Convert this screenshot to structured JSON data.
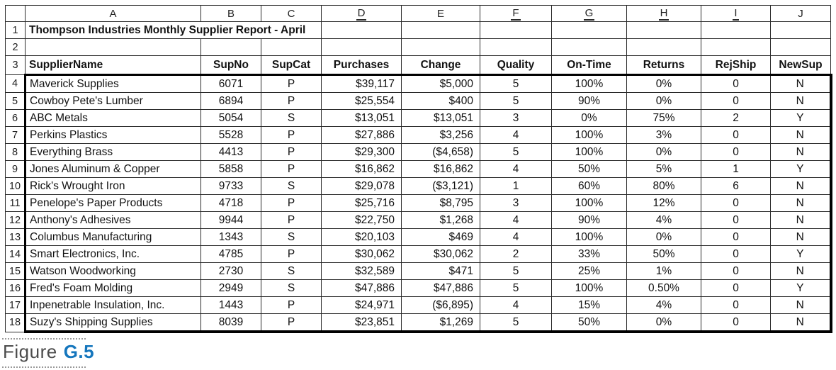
{
  "spreadsheet": {
    "columns": [
      {
        "letter": "A",
        "underline": false
      },
      {
        "letter": "B",
        "underline": false
      },
      {
        "letter": "C",
        "underline": false
      },
      {
        "letter": "D",
        "underline": true
      },
      {
        "letter": "E",
        "underline": false
      },
      {
        "letter": "F",
        "underline": true
      },
      {
        "letter": "G",
        "underline": true
      },
      {
        "letter": "H",
        "underline": true
      },
      {
        "letter": "I",
        "underline": true
      },
      {
        "letter": "J",
        "underline": false
      }
    ],
    "row_numbers": [
      "1",
      "2",
      "3"
    ],
    "title": "Thompson Industries Monthly Supplier Report - April",
    "headers": [
      "SupplierName",
      "SupNo",
      "SupCat",
      "Purchases",
      "Change",
      "Quality",
      "On-Time",
      "Returns",
      "RejShip",
      "NewSup"
    ],
    "rows": [
      {
        "n": "4",
        "cells": [
          "Maverick Supplies",
          "6071",
          "P",
          "$39,117",
          "$5,000",
          "5",
          "100%",
          "0%",
          "0",
          "N"
        ]
      },
      {
        "n": "5",
        "cells": [
          "Cowboy Pete's Lumber",
          "6894",
          "P",
          "$25,554",
          "$400",
          "5",
          "90%",
          "0%",
          "0",
          "N"
        ]
      },
      {
        "n": "6",
        "cells": [
          "ABC Metals",
          "5054",
          "S",
          "$13,051",
          "$13,051",
          "3",
          "0%",
          "75%",
          "2",
          "Y"
        ]
      },
      {
        "n": "7",
        "cells": [
          "Perkins Plastics",
          "5528",
          "P",
          "$27,886",
          "$3,256",
          "4",
          "100%",
          "3%",
          "0",
          "N"
        ]
      },
      {
        "n": "8",
        "cells": [
          "Everything Brass",
          "4413",
          "P",
          "$29,300",
          "($4,658)",
          "5",
          "100%",
          "0%",
          "0",
          "N"
        ]
      },
      {
        "n": "9",
        "cells": [
          "Jones Aluminum & Copper",
          "5858",
          "P",
          "$16,862",
          "$16,862",
          "4",
          "50%",
          "5%",
          "1",
          "Y"
        ]
      },
      {
        "n": "10",
        "cells": [
          "Rick's Wrought Iron",
          "9733",
          "S",
          "$29,078",
          "($3,121)",
          "1",
          "60%",
          "80%",
          "6",
          "N"
        ]
      },
      {
        "n": "11",
        "cells": [
          "Penelope's Paper Products",
          "4718",
          "P",
          "$25,716",
          "$8,795",
          "3",
          "100%",
          "12%",
          "0",
          "N"
        ]
      },
      {
        "n": "12",
        "cells": [
          "Anthony's Adhesives",
          "9944",
          "P",
          "$22,750",
          "$1,268",
          "4",
          "90%",
          "4%",
          "0",
          "N"
        ]
      },
      {
        "n": "13",
        "cells": [
          "Columbus Manufacturing",
          "1343",
          "S",
          "$20,103",
          "$469",
          "4",
          "100%",
          "0%",
          "0",
          "N"
        ]
      },
      {
        "n": "14",
        "cells": [
          "Smart Electronics, Inc.",
          "4785",
          "P",
          "$30,062",
          "$30,062",
          "2",
          "33%",
          "50%",
          "0",
          "Y"
        ]
      },
      {
        "n": "15",
        "cells": [
          "Watson Woodworking",
          "2730",
          "S",
          "$32,589",
          "$471",
          "5",
          "25%",
          "1%",
          "0",
          "N"
        ]
      },
      {
        "n": "16",
        "cells": [
          "Fred's Foam Molding",
          "2949",
          "S",
          "$47,886",
          "$47,886",
          "5",
          "100%",
          "0.50%",
          "0",
          "Y"
        ]
      },
      {
        "n": "17",
        "cells": [
          "Inpenetrable Insulation, Inc.",
          "1443",
          "P",
          "$24,971",
          "($6,895)",
          "4",
          "15%",
          "4%",
          "0",
          "N"
        ]
      },
      {
        "n": "18",
        "cells": [
          "Suzy's Shipping Supplies",
          "8039",
          "P",
          "$23,851",
          "$1,269",
          "5",
          "50%",
          "0%",
          "0",
          "N"
        ]
      }
    ]
  },
  "caption": {
    "label": "Figure",
    "number": "G.5",
    "number_color": "#1576bd",
    "label_color": "#4c4c4c"
  }
}
